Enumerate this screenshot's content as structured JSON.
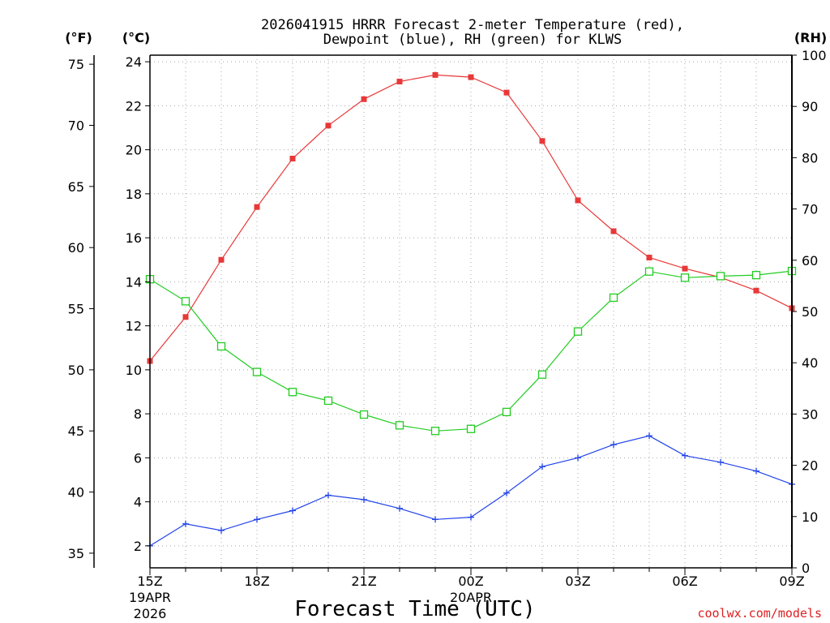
{
  "chart_data": {
    "type": "line",
    "title_line1": "2026041915 HRRR Forecast 2-meter Temperature (red),",
    "title_line2": "Dewpoint (blue), RH (green) for KLWS",
    "xlabel": "Forecast Time (UTC)",
    "credit": "coolwx.com/models",
    "units": {
      "fahrenheit": "(°F)",
      "celsius": "(°C)",
      "rh": "(RH)"
    },
    "grid": true,
    "x_hours": [
      0,
      1,
      2,
      3,
      4,
      5,
      6,
      7,
      8,
      9,
      10,
      11,
      12,
      13,
      14,
      15,
      16,
      17,
      18
    ],
    "xlim": [
      0,
      18
    ],
    "x_ticks": [
      {
        "hour": 0,
        "label": "15Z",
        "sub1": "19APR",
        "sub2": "2026"
      },
      {
        "hour": 3,
        "label": "18Z",
        "sub1": "",
        "sub2": ""
      },
      {
        "hour": 6,
        "label": "21Z",
        "sub1": "",
        "sub2": ""
      },
      {
        "hour": 9,
        "label": "00Z",
        "sub1": "20APR",
        "sub2": ""
      },
      {
        "hour": 12,
        "label": "03Z",
        "sub1": "",
        "sub2": ""
      },
      {
        "hour": 15,
        "label": "06Z",
        "sub1": "",
        "sub2": ""
      },
      {
        "hour": 18,
        "label": "09Z",
        "sub1": "",
        "sub2": ""
      }
    ],
    "ylim_celsius": [
      1,
      24.3
    ],
    "y_ticks_celsius": [
      2,
      4,
      6,
      8,
      10,
      12,
      14,
      16,
      18,
      20,
      22,
      24
    ],
    "y_ticks_fahrenheit": [
      35,
      40,
      45,
      50,
      55,
      60,
      65,
      70,
      75
    ],
    "y_ticks_rh": [
      0,
      10,
      20,
      30,
      40,
      50,
      60,
      70,
      80,
      90,
      100
    ],
    "series": [
      {
        "name": "Temperature",
        "axis": "celsius",
        "color": "#e83838",
        "marker": "filled-square",
        "values": [
          10.4,
          12.4,
          15.0,
          17.4,
          19.6,
          21.1,
          22.3,
          23.1,
          23.4,
          23.3,
          22.6,
          20.4,
          17.7,
          16.3,
          15.1,
          14.6,
          14.2,
          13.6,
          12.8
        ]
      },
      {
        "name": "Dewpoint",
        "axis": "celsius",
        "color": "#2244e8",
        "marker": "plus",
        "values": [
          2.0,
          3.0,
          2.7,
          3.2,
          3.6,
          4.3,
          4.1,
          3.7,
          3.2,
          3.3,
          4.4,
          5.6,
          6.0,
          6.6,
          7.0,
          6.1,
          5.8,
          5.4,
          4.8
        ]
      },
      {
        "name": "RH",
        "axis": "rh",
        "color": "#22cc22",
        "marker": "open-square",
        "values": [
          56.3,
          52.0,
          43.2,
          38.2,
          34.3,
          32.6,
          29.9,
          27.8,
          26.7,
          27.1,
          30.4,
          37.7,
          46.1,
          52.7,
          57.8,
          56.6,
          56.9,
          57.1,
          57.9
        ]
      }
    ]
  }
}
